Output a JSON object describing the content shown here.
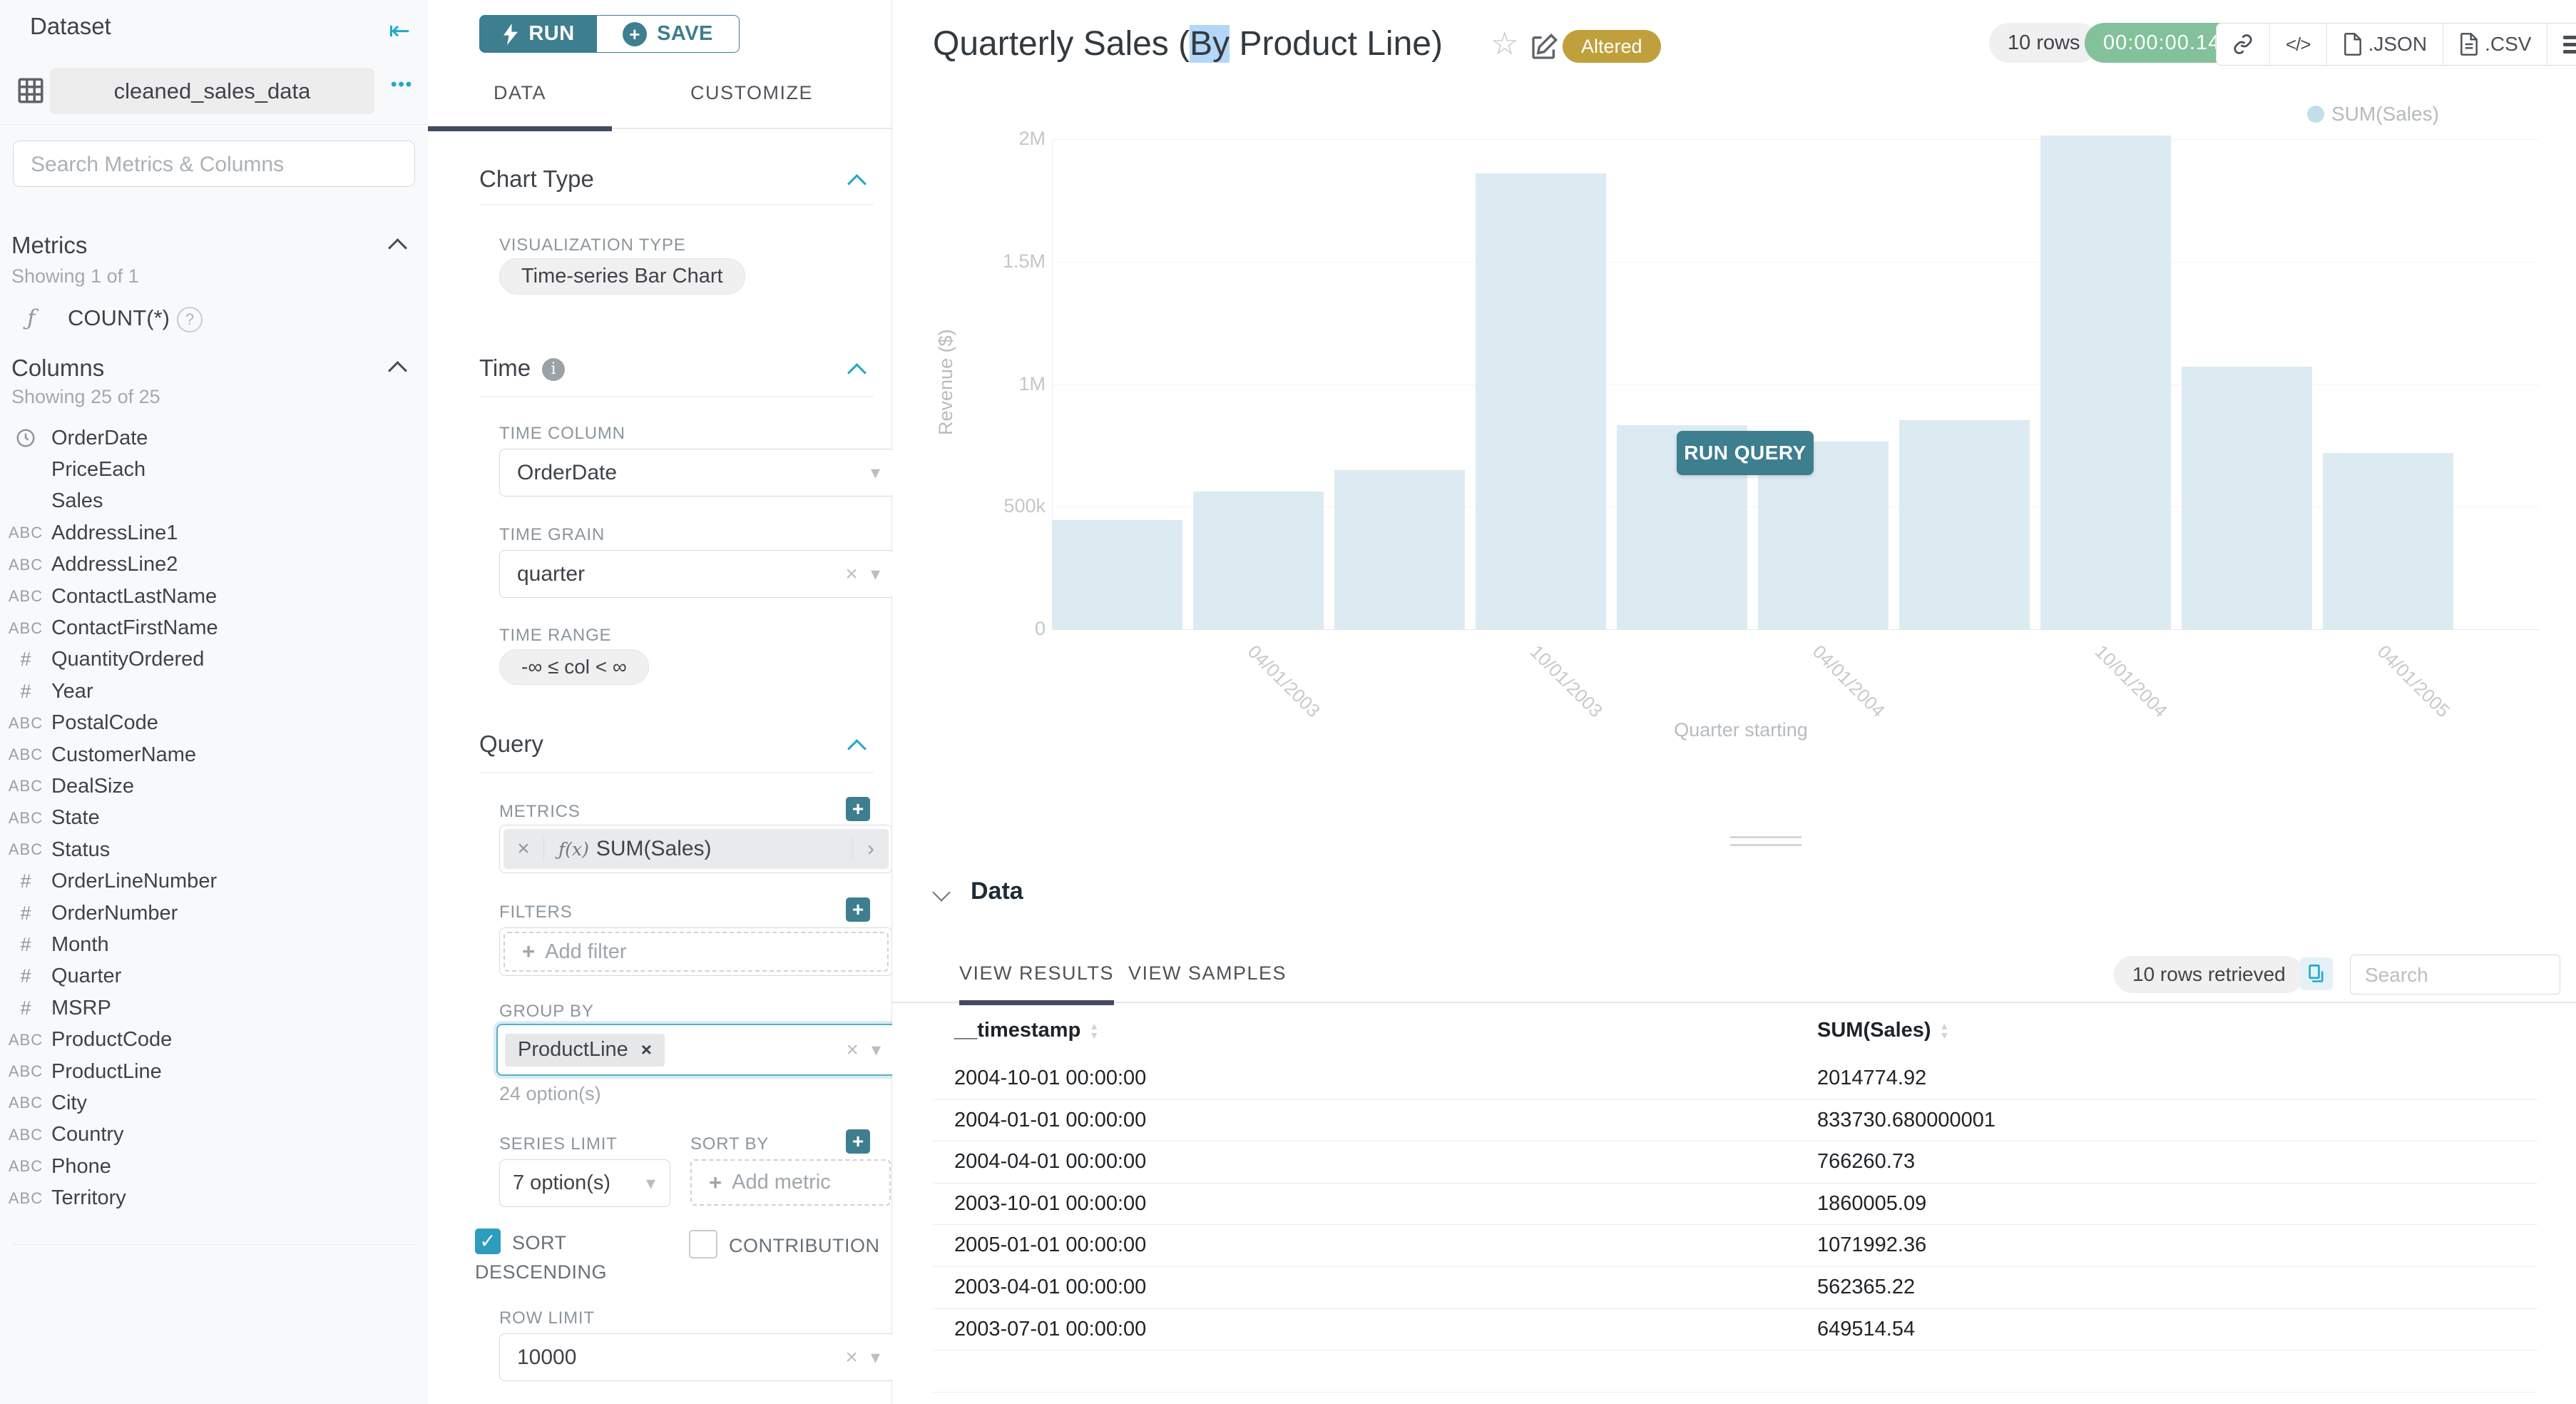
{
  "colors": {
    "accent_teal_button": "#3d7e8f",
    "link_teal": "#20a7c9",
    "checkbox_teal": "#2d9cbf",
    "timer_green": "#82c19a",
    "altered_gold": "#c0a03c",
    "bar_fill": "#dcebf2",
    "selection_blue": "#b3d7f7",
    "active_tab_underline": "#434a63"
  },
  "icons": {
    "collapse": "collapse-left-icon",
    "dataset": "table-grid-icon",
    "metric": "function-icon",
    "time_column": "clock-icon",
    "text_column": "abc-icon",
    "numeric_column": "hash-icon",
    "run": "lightning-bolt-icon",
    "save": "plus-circle-icon",
    "share": "link-icon",
    "embed": "code-icon",
    "export": "file-icon",
    "menu": "hamburger-icon",
    "copy": "copy-icon"
  },
  "dataset_panel": {
    "title": "Dataset",
    "dataset_name": "cleaned_sales_data",
    "more_dots": "•••",
    "search_placeholder": "Search Metrics & Columns",
    "metrics": {
      "title": "Metrics",
      "showing": "Showing 1 of 1",
      "items": [
        {
          "name": "COUNT(*)",
          "icon": "function-icon",
          "help": "?"
        }
      ]
    },
    "columns": {
      "title": "Columns",
      "showing": "Showing 25 of 25",
      "items": [
        {
          "name": "OrderDate",
          "type": "time"
        },
        {
          "name": "PriceEach",
          "type": "none"
        },
        {
          "name": "Sales",
          "type": "none"
        },
        {
          "name": "AddressLine1",
          "type": "text"
        },
        {
          "name": "AddressLine2",
          "type": "text"
        },
        {
          "name": "ContactLastName",
          "type": "text"
        },
        {
          "name": "ContactFirstName",
          "type": "text"
        },
        {
          "name": "QuantityOrdered",
          "type": "number"
        },
        {
          "name": "Year",
          "type": "number"
        },
        {
          "name": "PostalCode",
          "type": "text"
        },
        {
          "name": "CustomerName",
          "type": "text"
        },
        {
          "name": "DealSize",
          "type": "text"
        },
        {
          "name": "State",
          "type": "text"
        },
        {
          "name": "Status",
          "type": "text"
        },
        {
          "name": "OrderLineNumber",
          "type": "number"
        },
        {
          "name": "OrderNumber",
          "type": "number"
        },
        {
          "name": "Month",
          "type": "number"
        },
        {
          "name": "Quarter",
          "type": "number"
        },
        {
          "name": "MSRP",
          "type": "number"
        },
        {
          "name": "ProductCode",
          "type": "text"
        },
        {
          "name": "ProductLine",
          "type": "text"
        },
        {
          "name": "City",
          "type": "text"
        },
        {
          "name": "Country",
          "type": "text"
        },
        {
          "name": "Phone",
          "type": "text"
        },
        {
          "name": "Territory",
          "type": "text"
        }
      ]
    }
  },
  "control_panel": {
    "run_label": "RUN",
    "save_label": "SAVE",
    "tabs": [
      {
        "label": "DATA",
        "active": true
      },
      {
        "label": "CUSTOMIZE",
        "active": false
      }
    ],
    "chart_type": {
      "title": "Chart Type",
      "viz_type_label": "VISUALIZATION TYPE",
      "viz_type_value": "Time-series Bar Chart"
    },
    "time": {
      "title": "Time",
      "time_column_label": "TIME COLUMN",
      "time_column_value": "OrderDate",
      "time_grain_label": "TIME GRAIN",
      "time_grain_value": "quarter",
      "time_range_label": "TIME RANGE",
      "time_range_value": "-∞ ≤ col < ∞"
    },
    "query": {
      "title": "Query",
      "metrics_label": "METRICS",
      "metric_prefix": "ƒ(x)",
      "metric_chip": "SUM(Sales)",
      "filters_label": "FILTERS",
      "add_filter_label": "Add filter",
      "group_by_label": "GROUP BY",
      "group_by_chip": "ProductLine",
      "options_hint": "24 option(s)",
      "series_limit_label": "SERIES LIMIT",
      "series_limit_value": "7 option(s)",
      "sort_by_label": "SORT BY",
      "add_metric_label": "Add metric",
      "sort_descending_label_line1": "SORT",
      "sort_descending_label_line2": "DESCENDING",
      "sort_descending_checked": true,
      "contribution_label": "CONTRIBUTION",
      "contribution_checked": false,
      "row_limit_label": "ROW LIMIT",
      "row_limit_value": "10000"
    }
  },
  "header": {
    "title_prefix": "Quarterly Sales (",
    "title_selected": "By",
    "title_suffix": " Product Line)",
    "altered_badge": "Altered",
    "rows_badge": "10 rows",
    "timer_badge": "00:00:00.14",
    "export_json_label": ".JSON",
    "export_csv_label": ".CSV",
    "embed_label": "</>"
  },
  "chart_data": {
    "type": "bar",
    "title": "Quarterly Sales (By Product Line)",
    "x": [
      "2003-01-01",
      "2003-04-01",
      "2003-07-01",
      "2003-10-01",
      "2004-01-01",
      "2004-04-01",
      "2004-07-01",
      "2004-10-01",
      "2005-01-01",
      "2005-04-01"
    ],
    "series": [
      {
        "name": "SUM(Sales)",
        "values": [
          445095,
          562365,
          649515,
          1860005,
          833731,
          766261,
          852442,
          2014775,
          1071992,
          719494
        ]
      }
    ],
    "xlabel": "Quarter starting",
    "ylabel": "Revenue ($)",
    "ylim": [
      0,
      2000000
    ],
    "yticks": [
      "2M",
      "1.5M",
      "1M",
      "500k",
      "0"
    ],
    "xticks": [
      {
        "label": "04/01/2003",
        "bar_index": 1
      },
      {
        "label": "10/01/2003",
        "bar_index": 3
      },
      {
        "label": "04/01/2004",
        "bar_index": 5
      },
      {
        "label": "10/01/2004",
        "bar_index": 7
      },
      {
        "label": "04/01/2005",
        "bar_index": 9
      }
    ],
    "legend": [
      "SUM(Sales)"
    ],
    "legend_position": "top-right",
    "grid": true,
    "bar_color": "#dcebf2",
    "stale_overlay_button": "RUN QUERY"
  },
  "data_panel": {
    "title": "Data",
    "tabs": [
      {
        "label": "VIEW RESULTS",
        "active": true
      },
      {
        "label": "VIEW SAMPLES",
        "active": false
      }
    ],
    "rows_retrieved": "10 rows retrieved",
    "search_placeholder": "Search",
    "table": {
      "columns": [
        "__timestamp",
        "SUM(Sales)"
      ],
      "rows": [
        [
          "2004-10-01 00:00:00",
          "2014774.92"
        ],
        [
          "2004-01-01 00:00:00",
          "833730.680000001"
        ],
        [
          "2004-04-01 00:00:00",
          "766260.73"
        ],
        [
          "2003-10-01 00:00:00",
          "1860005.09"
        ],
        [
          "2005-01-01 00:00:00",
          "1071992.36"
        ],
        [
          "2003-04-01 00:00:00",
          "562365.22"
        ],
        [
          "2003-07-01 00:00:00",
          "649514.54"
        ]
      ]
    }
  }
}
